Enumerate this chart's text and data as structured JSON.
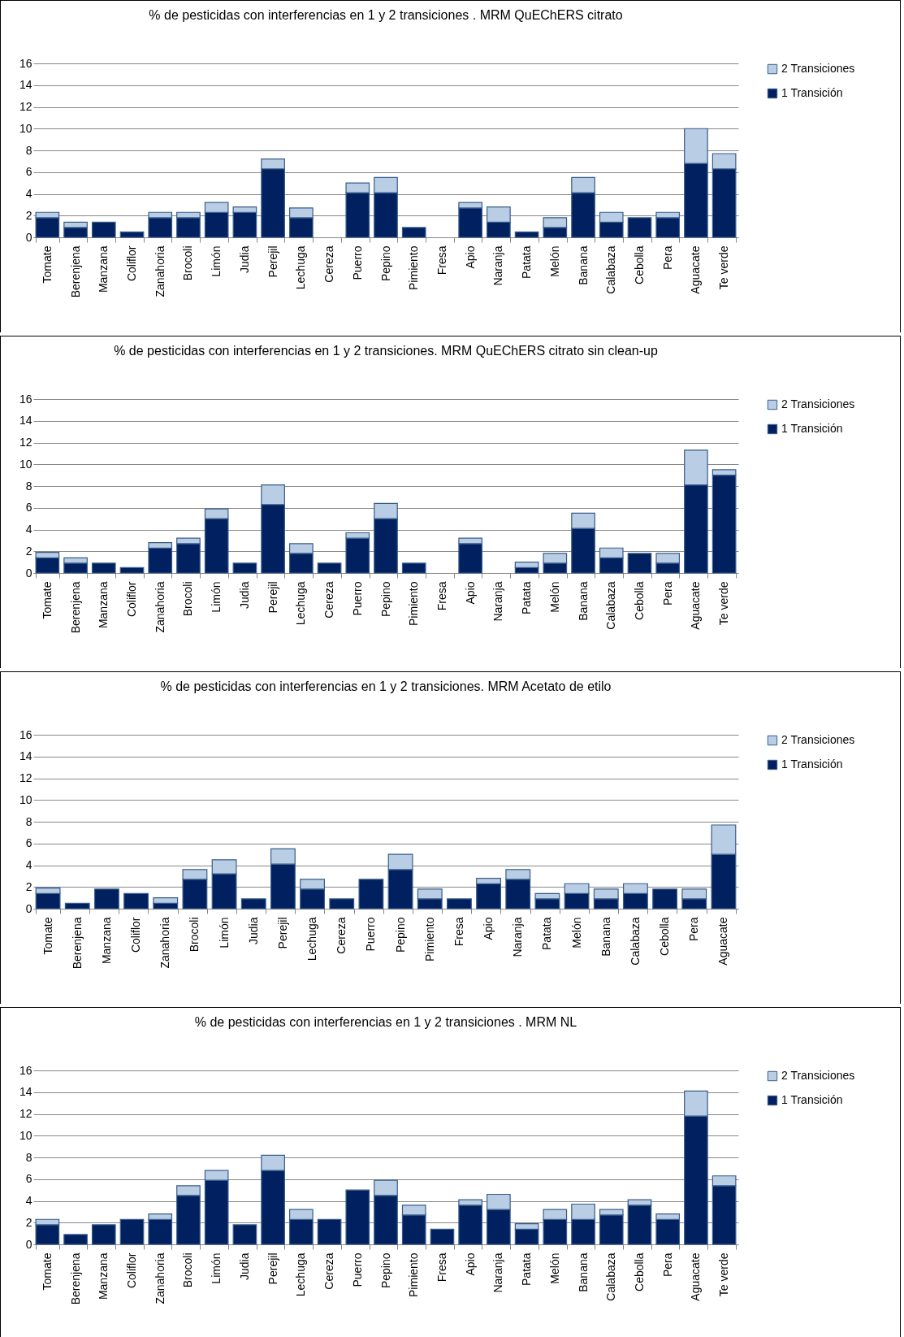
{
  "chart_data": [
    {
      "type": "bar",
      "title": "% de pesticidas con interferencias en 1 y 2 transiciones .  MRM QuEChERS citrato",
      "categories": [
        "Tomate",
        "Berenjena",
        "Manzana",
        "Coliflor",
        "Zanahoria",
        "Brocoli",
        "Limón",
        "Judia",
        "Perejil",
        "Lechuga",
        "Cereza",
        "Puerro",
        "Pepino",
        "Pimiento",
        "Fresa",
        "Apio",
        "Naranja",
        "Patata",
        "Melón",
        "Banana",
        "Calabaza",
        "Cebolla",
        "Pera",
        "Aguacate",
        "Te verde"
      ],
      "stacked": true,
      "ylim": [
        0,
        16
      ],
      "yticks": [
        0,
        2,
        4,
        6,
        8,
        10,
        12,
        14,
        16
      ],
      "grid": "y",
      "legend": "right",
      "series": [
        {
          "name": "1 Transición",
          "color": "#002060",
          "values": [
            1.8,
            0.9,
            1.4,
            0.5,
            1.8,
            1.8,
            2.3,
            2.3,
            6.3,
            1.8,
            null,
            4.1,
            4.1,
            0.9,
            null,
            2.7,
            1.4,
            0.5,
            0.9,
            4.1,
            1.4,
            1.8,
            1.8,
            6.8,
            6.3
          ]
        },
        {
          "name": "2 Transiciones",
          "color": "#b9cde5",
          "values": [
            0.5,
            0.5,
            null,
            null,
            0.5,
            0.5,
            0.9,
            0.5,
            0.9,
            0.9,
            null,
            0.9,
            1.4,
            null,
            null,
            0.5,
            1.4,
            null,
            0.9,
            1.4,
            0.9,
            null,
            0.5,
            3.2,
            1.4
          ]
        }
      ]
    },
    {
      "type": "bar",
      "title": "% de pesticidas con interferencias en 1 y 2 transiciones.  MRM QuEChERS citrato  sin clean-up",
      "categories": [
        "Tomate",
        "Berenjena",
        "Manzana",
        "Coliflor",
        "Zanahoria",
        "Brocoli",
        "Limón",
        "Judia",
        "Perejil",
        "Lechuga",
        "Cereza",
        "Puerro",
        "Pepino",
        "Pimiento",
        "Fresa",
        "Apio",
        "Naranja",
        "Patata",
        "Melón",
        "Banana",
        "Calabaza",
        "Cebolla",
        "Pera",
        "Aguacate",
        "Te verde"
      ],
      "stacked": true,
      "ylim": [
        0,
        16
      ],
      "yticks": [
        0,
        2,
        4,
        6,
        8,
        10,
        12,
        14,
        16
      ],
      "grid": "y",
      "legend": "right",
      "series": [
        {
          "name": "1 Transición",
          "color": "#002060",
          "values": [
            1.4,
            0.9,
            0.9,
            0.5,
            2.3,
            2.7,
            5.0,
            0.9,
            6.3,
            1.8,
            0.9,
            3.2,
            5.0,
            0.9,
            null,
            2.7,
            null,
            0.5,
            0.9,
            4.1,
            1.4,
            1.8,
            0.9,
            8.1,
            9.0
          ]
        },
        {
          "name": "2 Transiciones",
          "color": "#b9cde5",
          "values": [
            0.5,
            0.5,
            null,
            null,
            0.5,
            0.5,
            0.9,
            null,
            1.8,
            0.9,
            null,
            0.5,
            1.4,
            null,
            null,
            0.5,
            null,
            0.5,
            0.9,
            1.4,
            0.9,
            null,
            0.9,
            3.2,
            0.5
          ]
        }
      ]
    },
    {
      "type": "bar",
      "title": "% de pesticidas con interferencias en 1 y 2 transiciones. MRM Acetato de etilo",
      "categories": [
        "Tomate",
        "Berenjena",
        "Manzana",
        "Coliflor",
        "Zanahoria",
        "Brocoli",
        "Limón",
        "Judia",
        "Perejil",
        "Lechuga",
        "Cereza",
        "Puerro",
        "Pepino",
        "Pimiento",
        "Fresa",
        "Apio",
        "Naranja",
        "Patata",
        "Melón",
        "Banana",
        "Calabaza",
        "Cebolla",
        "Pera",
        "Aguacate"
      ],
      "stacked": true,
      "ylim": [
        0,
        16
      ],
      "yticks": [
        0,
        2,
        4,
        6,
        8,
        10,
        12,
        14,
        16
      ],
      "grid": "y",
      "legend": "right",
      "series": [
        {
          "name": "1 Transición",
          "color": "#002060",
          "values": [
            1.4,
            0.5,
            1.8,
            1.4,
            0.5,
            2.7,
            3.2,
            0.9,
            4.1,
            1.8,
            0.9,
            2.7,
            3.6,
            0.9,
            0.9,
            2.3,
            2.7,
            0.9,
            1.4,
            0.9,
            1.4,
            1.8,
            0.9,
            5.0
          ]
        },
        {
          "name": "2 Transiciones",
          "color": "#b9cde5",
          "values": [
            0.5,
            null,
            null,
            null,
            0.5,
            0.9,
            1.3,
            null,
            1.4,
            0.9,
            null,
            null,
            1.4,
            0.9,
            null,
            0.5,
            0.9,
            0.5,
            0.9,
            0.9,
            0.9,
            null,
            0.9,
            2.7
          ]
        }
      ]
    },
    {
      "type": "bar",
      "title": "% de pesticidas con interferencias en 1 y 2 transiciones .  MRM NL",
      "categories": [
        "Tomate",
        "Berenjena",
        "Manzana",
        "Coliflor",
        "Zanahoria",
        "Brocoli",
        "Limón",
        "Judia",
        "Perejil",
        "Lechuga",
        "Cereza",
        "Puerro",
        "Pepino",
        "Pimiento",
        "Fresa",
        "Apio",
        "Naranja",
        "Patata",
        "Melón",
        "Banana",
        "Calabaza",
        "Cebolla",
        "Pera",
        "Aguacate",
        "Te verde"
      ],
      "stacked": true,
      "ylim": [
        0,
        16
      ],
      "yticks": [
        0,
        2,
        4,
        6,
        8,
        10,
        12,
        14,
        16
      ],
      "grid": "y",
      "legend": "right",
      "series": [
        {
          "name": "1 Transición",
          "color": "#002060",
          "values": [
            1.8,
            0.9,
            1.8,
            2.3,
            2.3,
            4.5,
            5.9,
            1.8,
            6.8,
            2.3,
            2.3,
            5.0,
            4.5,
            2.7,
            1.4,
            3.6,
            3.2,
            1.4,
            2.3,
            2.3,
            2.7,
            3.6,
            2.3,
            11.8,
            5.4
          ]
        },
        {
          "name": "2 Transiciones",
          "color": "#b9cde5",
          "values": [
            0.5,
            null,
            null,
            null,
            0.5,
            0.9,
            0.9,
            null,
            1.4,
            0.9,
            null,
            null,
            1.4,
            0.9,
            null,
            0.5,
            1.4,
            0.5,
            0.9,
            1.4,
            0.5,
            0.5,
            0.5,
            2.3,
            0.9
          ]
        }
      ]
    }
  ]
}
